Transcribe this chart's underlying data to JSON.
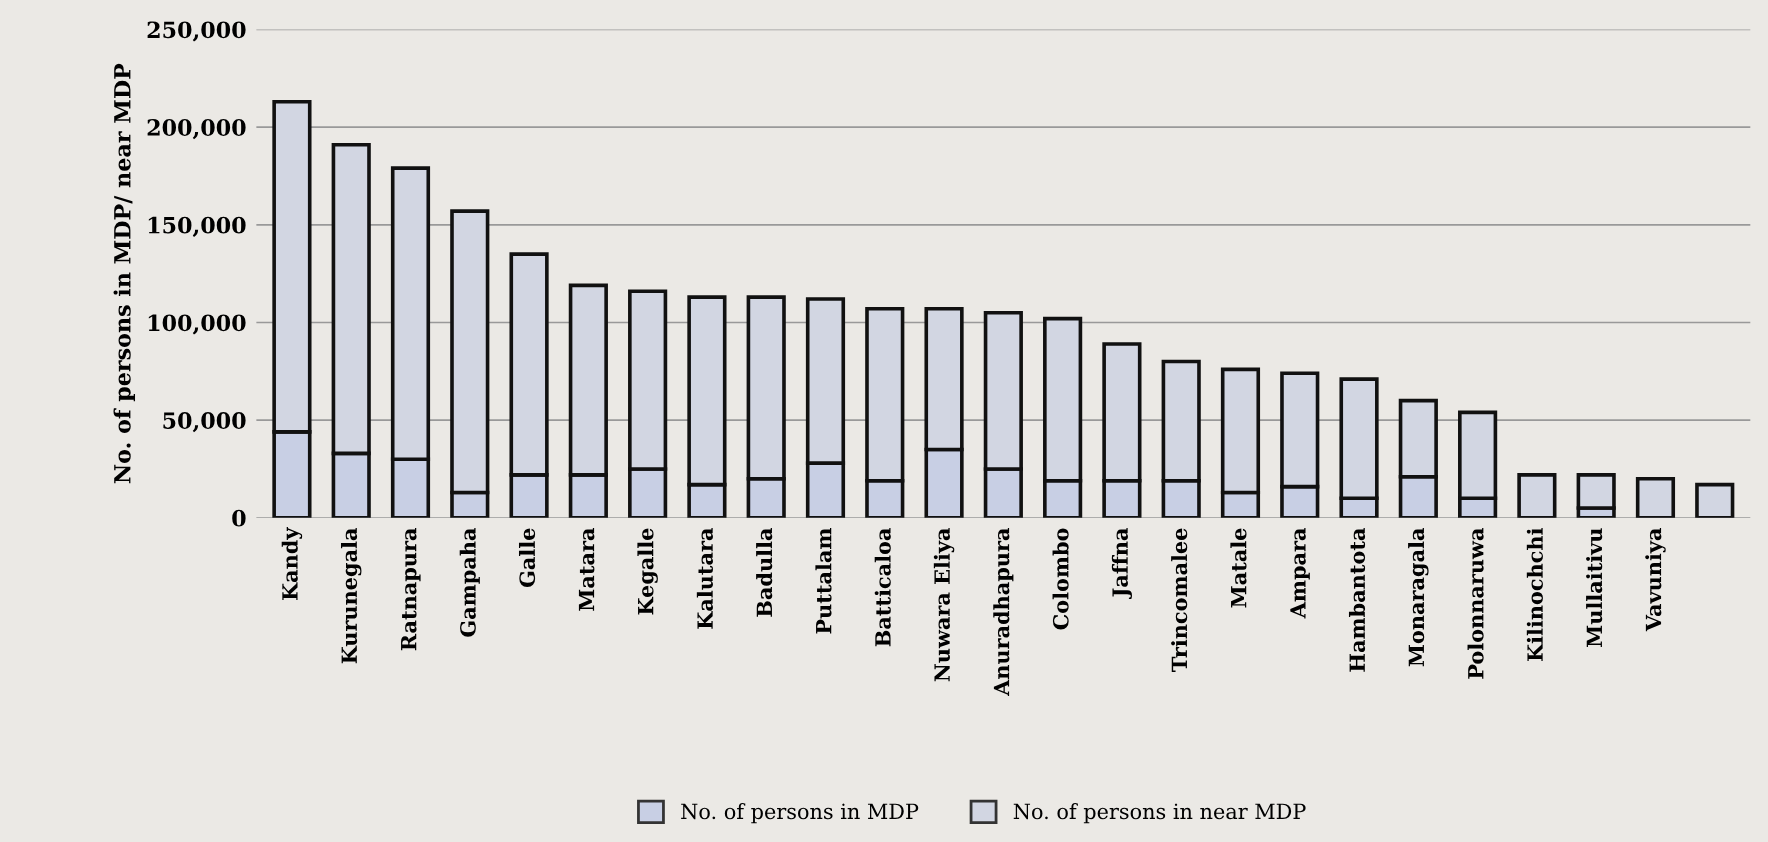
{
  "chart_data": {
    "type": "bar",
    "stacked": true,
    "ylabel": "No. of persons in MDP/ near MDP",
    "categories": [
      "Kandy",
      "Kurunegala",
      "Ratnapura",
      "Gampaha",
      "Galle",
      "Matara",
      "Kegalle",
      "Kalutara",
      "Badulla",
      "Puttalam",
      "Batticaloa",
      "Nuwara Eliya",
      "Anuradhapura",
      "Colombo",
      "Jaffna",
      "Trincomalee",
      "Matale",
      "Ampara",
      "Hambantota",
      "Monaragala",
      "Polonnaruwa",
      "Kilinochchi",
      "Mullaitivu",
      "Vavuniya",
      null
    ],
    "series": [
      {
        "name": "No. of persons in MDP",
        "color": "#c8cfe4",
        "values": [
          44000,
          33000,
          30000,
          13000,
          22000,
          22000,
          25000,
          17000,
          20000,
          28000,
          19000,
          35000,
          25000,
          19000,
          19000,
          19000,
          13000,
          16000,
          10000,
          21000,
          10000,
          null,
          5000,
          null,
          null
        ]
      },
      {
        "name": "No. of persons in near MDP",
        "color": "#d2d6e2",
        "values": [
          169000,
          158000,
          149000,
          144000,
          113000,
          97000,
          91000,
          96000,
          93000,
          84000,
          88000,
          72000,
          80000,
          83000,
          70000,
          61000,
          63000,
          58000,
          61000,
          39000,
          44000,
          22000,
          17000,
          20000,
          17000
        ]
      }
    ],
    "ylim": [
      0,
      250000
    ],
    "yticks": [
      {
        "value": 0,
        "label": "0"
      },
      {
        "value": 50000,
        "label": "50,000"
      },
      {
        "value": 100000,
        "label": "100,000"
      },
      {
        "value": 150000,
        "label": "150,000"
      },
      {
        "value": 200000,
        "label": "200,000"
      },
      {
        "value": 250000,
        "label": "250,000"
      }
    ],
    "grid": "y",
    "legend": "bottom"
  }
}
